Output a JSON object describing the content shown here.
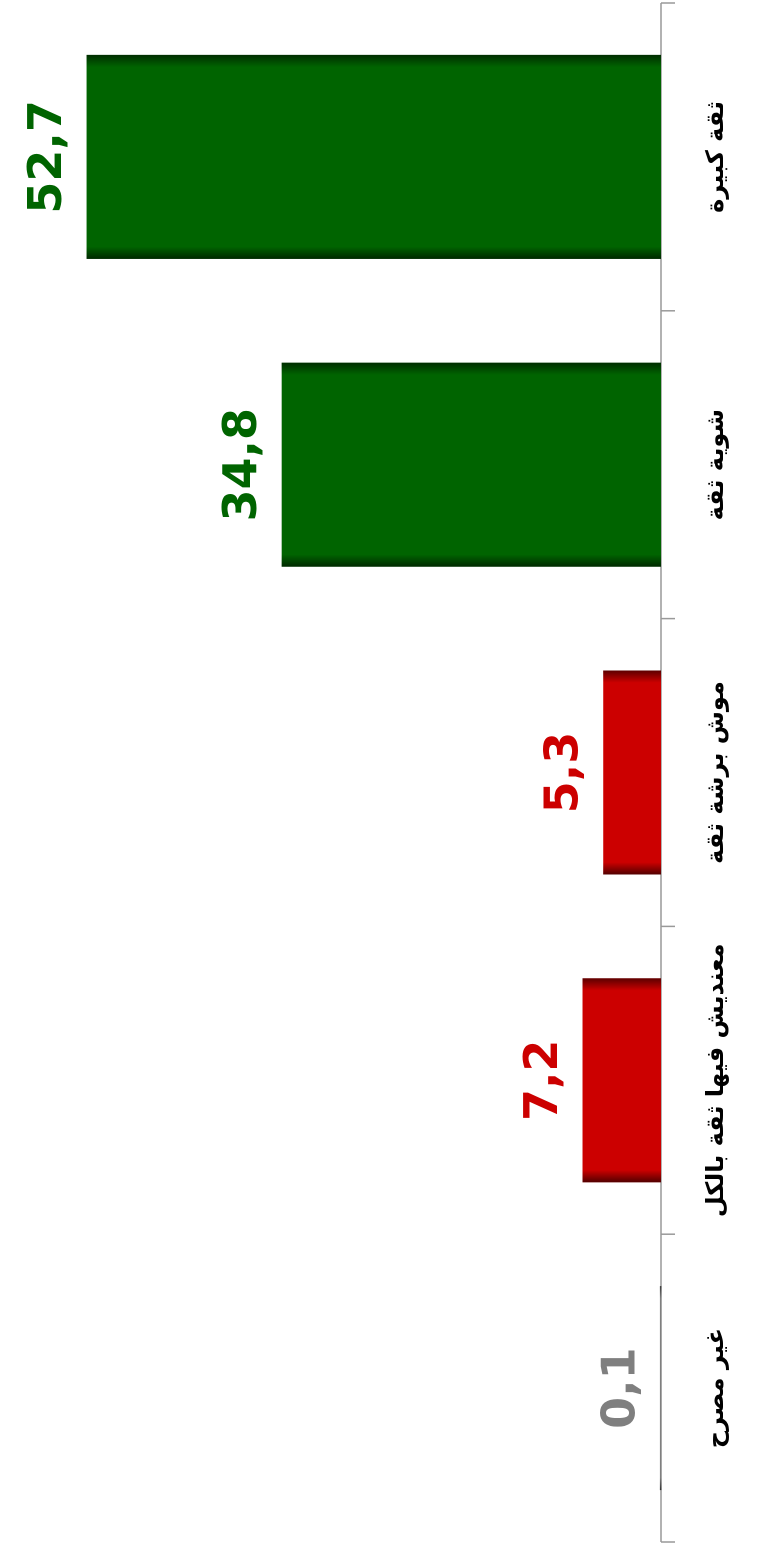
{
  "chart_data": {
    "type": "bar",
    "orientation": "horizontal",
    "categories": [
      "ثقة كبيرة",
      "شوية ثقة",
      "موش برشة ثقة",
      "معنديش فيها ثقة بالكل",
      "غير مصرح"
    ],
    "values": [
      52.7,
      34.8,
      5.3,
      7.2,
      0.1
    ],
    "value_labels": [
      "52,7",
      "34,8",
      "5,3",
      "7,2",
      "0,1"
    ],
    "colors": [
      "#006400",
      "#006400",
      "#cc0000",
      "#cc0000",
      "#7f7f7f"
    ],
    "ylim": [
      0,
      60
    ]
  }
}
